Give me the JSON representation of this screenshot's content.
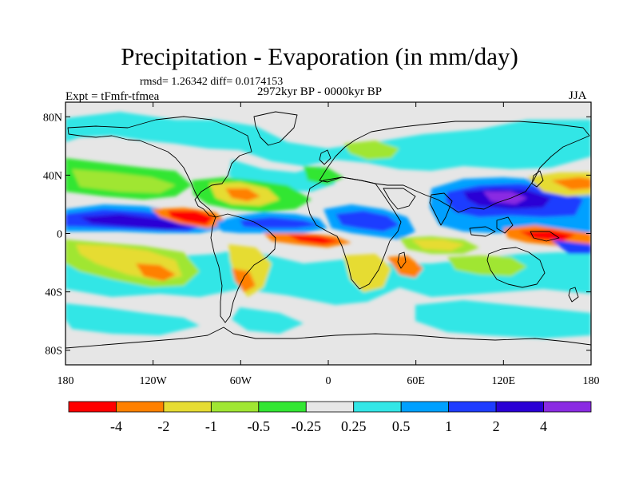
{
  "title": "Precipitation - Evaporation (in mm/day)",
  "subtitle": "rmsd= 1.26342 diff= 0.0174153",
  "expt": "Expt = tFmfr-tfmea",
  "period": "2972kyr BP - 0000kyr BP",
  "season": "JJA",
  "map": {
    "projection": "cylindrical equidistant",
    "lon_range": [
      -180,
      180
    ],
    "lat_range": [
      -90,
      90
    ],
    "y_ticks": [
      {
        "lat": 80,
        "label": "80N"
      },
      {
        "lat": 40,
        "label": "40N"
      },
      {
        "lat": 0,
        "label": "0"
      },
      {
        "lat": -40,
        "label": "40S"
      },
      {
        "lat": -80,
        "label": "80S"
      }
    ],
    "x_ticks": [
      {
        "lon": -180,
        "label": "180"
      },
      {
        "lon": -120,
        "label": "120W"
      },
      {
        "lon": -60,
        "label": "60W"
      },
      {
        "lon": 0,
        "label": "0"
      },
      {
        "lon": 60,
        "label": "60E"
      },
      {
        "lon": 120,
        "label": "120E"
      },
      {
        "lon": 180,
        "label": "180"
      }
    ]
  },
  "colorbar": {
    "colors": [
      "#ff0000",
      "#ff8000",
      "#e6dc32",
      "#a0e632",
      "#32e632",
      "#e6e6e6",
      "#32e6e6",
      "#00a0ff",
      "#1e3cff",
      "#2a00d5",
      "#8a2be2"
    ],
    "labels": [
      "-4",
      "-2",
      "-1",
      "-0.5",
      "-0.25",
      "0.25",
      "0.5",
      "1",
      "2",
      "4"
    ]
  },
  "colors": {
    "background": "#ffffff",
    "land_outline": "#000000",
    "neutral": "#e6e6e6"
  }
}
